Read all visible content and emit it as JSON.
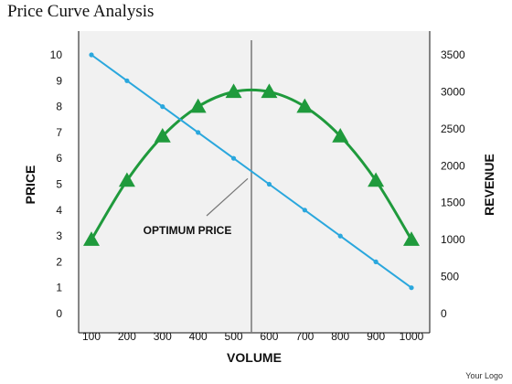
{
  "title": "Price Curve Analysis",
  "footer": "Your Logo",
  "chart_data": {
    "type": "line",
    "title": "Price Curve Analysis",
    "xlabel": "VOLUME",
    "ylabel_left": "PRICE",
    "ylabel_right": "REVENUE",
    "x": [
      100,
      200,
      300,
      400,
      500,
      600,
      700,
      800,
      900,
      1000
    ],
    "x_ticks": [
      "100",
      "200",
      "300",
      "400",
      "500",
      "600",
      "700",
      "800",
      "900",
      "1000"
    ],
    "y_left_lim": [
      0,
      10
    ],
    "y_left_ticks": [
      "0",
      "1",
      "2",
      "3",
      "4",
      "5",
      "6",
      "7",
      "8",
      "9",
      "10"
    ],
    "y_right_lim": [
      0,
      3500
    ],
    "y_right_ticks": [
      "0",
      "500",
      "1000",
      "1500",
      "2000",
      "2500",
      "3000",
      "3500"
    ],
    "series": [
      {
        "axis": "left",
        "color": "#2aa7dd",
        "marker": "circle",
        "values": [
          10,
          9,
          8,
          7,
          6,
          5,
          4,
          3,
          2,
          1
        ]
      },
      {
        "axis": "right",
        "color": "#1f9a3c",
        "marker": "triangle",
        "values": [
          1000,
          1800,
          2400,
          2800,
          3000,
          3000,
          2800,
          2400,
          1800,
          1000
        ]
      }
    ],
    "vertical_line_x": 550,
    "annotation": {
      "text": "OPTIMUM PRICE",
      "target_x": 550,
      "target_y_left": 5.5
    },
    "grid": false
  }
}
